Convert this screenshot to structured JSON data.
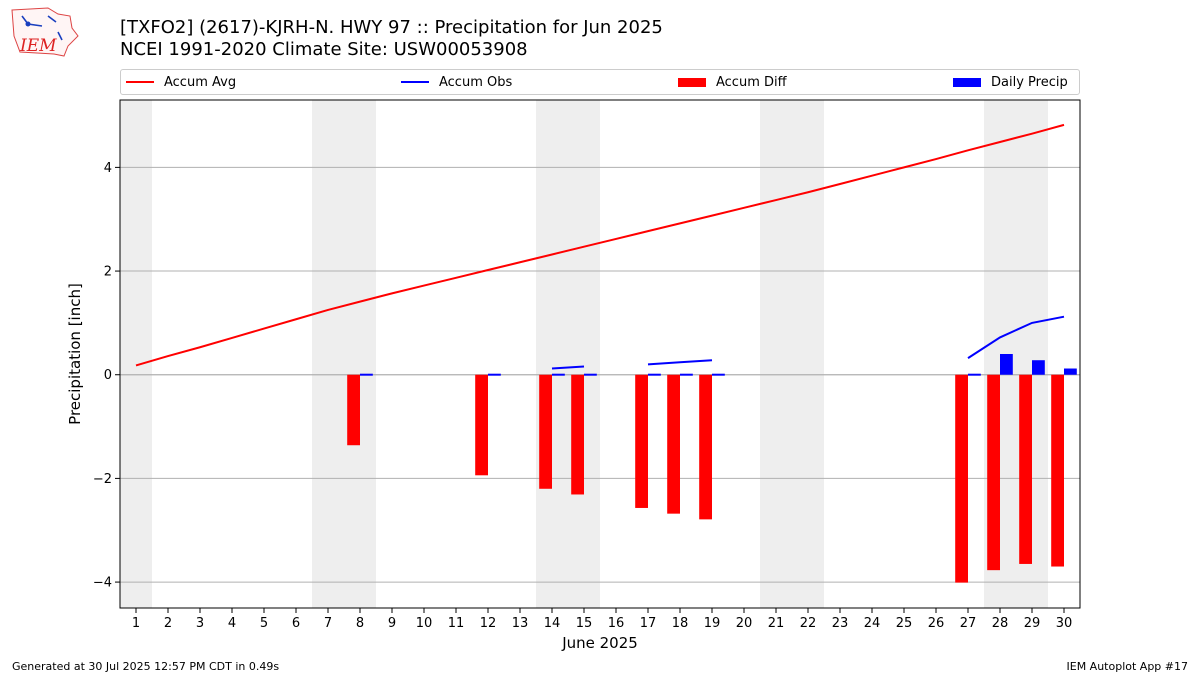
{
  "logo_text": "IEM",
  "header": {
    "title_line1": "[TXFO2] (2617)-KJRH-N. HWY 97 :: Precipitation for Jun 2025",
    "title_line2": "NCEI 1991-2020 Climate Site: USW00053908"
  },
  "legend": {
    "accum_avg": "Accum Avg",
    "accum_obs": "Accum Obs",
    "accum_diff": "Accum Diff",
    "daily_precip": "Daily Precip"
  },
  "footer": {
    "left": "Generated at 30 Jul 2025 12:57 PM CDT in 0.49s",
    "right": "IEM Autoplot App #17"
  },
  "colors": {
    "accum_avg": "#ff0000",
    "accum_obs": "#0000ff",
    "accum_diff": "#ff0000",
    "daily_precip": "#0000ff",
    "weekend_band": "#eeeeee",
    "grid": "#b0b0b0"
  },
  "chart_data": {
    "type": "bar",
    "xlabel": "June 2025",
    "ylabel": "Precipitation [inch]",
    "x": [
      1,
      2,
      3,
      4,
      5,
      6,
      7,
      8,
      9,
      10,
      11,
      12,
      13,
      14,
      15,
      16,
      17,
      18,
      19,
      20,
      21,
      22,
      23,
      24,
      25,
      26,
      27,
      28,
      29,
      30
    ],
    "xlim": [
      0.5,
      30.5
    ],
    "ylim": [
      -4.5,
      5.3
    ],
    "yticks": [
      -4,
      -2,
      0,
      2,
      4
    ],
    "ytick_labels": [
      "−4",
      "−2",
      "0",
      "2",
      "4"
    ],
    "grid": "horizontal",
    "legend_position": "top",
    "weekend_days": [
      1,
      7,
      8,
      14,
      15,
      21,
      22,
      28,
      29
    ],
    "series": [
      {
        "name": "Accum Avg",
        "kind": "line",
        "x": [
          1,
          2,
          3,
          4,
          5,
          6,
          7,
          8,
          9,
          10,
          11,
          12,
          13,
          14,
          15,
          16,
          17,
          18,
          19,
          20,
          21,
          22,
          23,
          24,
          25,
          26,
          27,
          28,
          29,
          30
        ],
        "values": [
          0.18,
          0.36,
          0.53,
          0.71,
          0.89,
          1.07,
          1.25,
          1.41,
          1.57,
          1.72,
          1.87,
          2.02,
          2.17,
          2.32,
          2.47,
          2.62,
          2.77,
          2.92,
          3.07,
          3.22,
          3.37,
          3.52,
          3.68,
          3.84,
          4.0,
          4.16,
          4.33,
          4.49,
          4.65,
          4.82
        ]
      },
      {
        "name": "Accum Obs",
        "kind": "line",
        "x": [
          8,
          9,
          10,
          11,
          12,
          13,
          14,
          15,
          16,
          17,
          18,
          19,
          20,
          21,
          22,
          23,
          24,
          25,
          26,
          27,
          28,
          29,
          30
        ],
        "values": [
          0.02,
          null,
          null,
          null,
          0.05,
          null,
          0.12,
          0.16,
          null,
          0.2,
          0.24,
          0.28,
          null,
          null,
          null,
          null,
          null,
          null,
          null,
          0.32,
          0.72,
          1.0,
          1.12
        ]
      },
      {
        "name": "Accum Diff",
        "kind": "bar",
        "x": [
          8,
          12,
          14,
          15,
          17,
          18,
          19,
          27,
          28,
          29,
          30
        ],
        "values": [
          -1.36,
          -1.94,
          -2.2,
          -2.31,
          -2.57,
          -2.68,
          -2.79,
          -4.01,
          -3.77,
          -3.65,
          -3.7
        ]
      },
      {
        "name": "Daily Precip",
        "kind": "bar",
        "x": [
          8,
          12,
          14,
          15,
          17,
          18,
          19,
          27,
          28,
          29,
          30
        ],
        "values": [
          0.02,
          0.02,
          0.02,
          0.02,
          0.02,
          0.02,
          0.02,
          0.02,
          0.4,
          0.28,
          0.12
        ]
      }
    ]
  }
}
